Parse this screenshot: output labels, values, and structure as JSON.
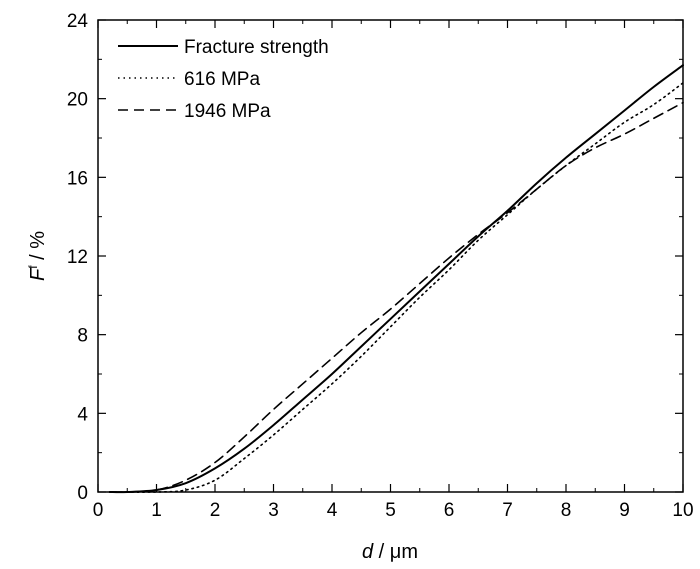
{
  "chart_data": {
    "type": "line",
    "xlabel_italic": "d",
    "xlabel_unit": " / μm",
    "ylabel_italic": "F",
    "ylabel_sup": "f",
    "ylabel_unit": " / %",
    "xlim": [
      0,
      10
    ],
    "ylim": [
      0,
      24
    ],
    "xticks": [
      "0",
      "1",
      "2",
      "3",
      "4",
      "5",
      "6",
      "7",
      "8",
      "9",
      "10"
    ],
    "yticks": [
      "0",
      "4",
      "8",
      "12",
      "16",
      "20",
      "24"
    ],
    "legend_position": "top-left",
    "series": [
      {
        "name": "Fracture strength",
        "style": "solid",
        "x": [
          0.2,
          0.5,
          1.0,
          1.5,
          2.0,
          2.5,
          3.0,
          3.5,
          4.0,
          4.5,
          5.0,
          5.5,
          6.0,
          6.5,
          7.0,
          7.5,
          8.0,
          8.5,
          9.0,
          9.5,
          10.0
        ],
        "y": [
          0.0,
          0.0,
          0.1,
          0.45,
          1.2,
          2.2,
          3.4,
          4.7,
          6.0,
          7.4,
          8.8,
          10.2,
          11.6,
          13.0,
          14.3,
          15.7,
          17.0,
          18.2,
          19.4,
          20.6,
          21.7
        ]
      },
      {
        "name": "616 MPa",
        "style": "dotted",
        "x": [
          0.2,
          1.0,
          1.5,
          2.0,
          2.5,
          3.0,
          3.5,
          4.0,
          4.5,
          5.0,
          5.5,
          6.0,
          6.5,
          7.0,
          7.5,
          8.0,
          8.5,
          9.0,
          9.5,
          10.0
        ],
        "y": [
          0.0,
          0.0,
          0.1,
          0.6,
          1.7,
          2.9,
          4.2,
          5.5,
          6.9,
          8.4,
          9.9,
          11.3,
          12.8,
          14.1,
          15.4,
          16.6,
          17.7,
          18.8,
          19.7,
          20.8
        ]
      },
      {
        "name": "1946 MPa",
        "style": "dashed",
        "x": [
          0.2,
          0.5,
          1.0,
          1.5,
          2.0,
          2.5,
          3.0,
          3.5,
          4.0,
          4.5,
          5.0,
          5.5,
          6.0,
          6.5,
          7.0,
          7.5,
          8.0,
          8.5,
          9.0,
          9.5,
          10.0
        ],
        "y": [
          0.0,
          0.0,
          0.1,
          0.6,
          1.5,
          2.8,
          4.2,
          5.5,
          6.8,
          8.1,
          9.3,
          10.6,
          11.9,
          13.1,
          14.2,
          15.4,
          16.6,
          17.5,
          18.2,
          19.0,
          19.8
        ]
      }
    ]
  }
}
